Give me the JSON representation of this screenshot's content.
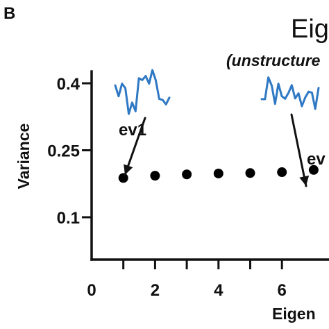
{
  "figure": {
    "panel_letter": "B",
    "title": "Eig",
    "annotation_right": "(unstructure",
    "label_ev1": "ev1",
    "label_ev_right": "ev"
  },
  "colors": {
    "axis": "#111111",
    "points": "#000000",
    "sparkline": "#2f78c4",
    "text": "#111111"
  },
  "chart_data": {
    "type": "scatter",
    "title": "Eig",
    "xlabel": "Eigen",
    "ylabel": "Variance",
    "xlim": [
      0,
      7.4
    ],
    "ylim": [
      0.06,
      0.43
    ],
    "xticks": [
      0,
      2,
      4,
      6
    ],
    "yticks": [
      0.4,
      0.25,
      0.1
    ],
    "ytick_labels": [
      "0.4",
      "0.25",
      "0.1"
    ],
    "x_start_tick": 1,
    "grid": false,
    "series": [
      {
        "x": [
          1,
          2,
          3,
          4,
          5,
          6,
          7
        ],
        "y": [
          0.188,
          0.193,
          0.196,
          0.198,
          0.199,
          0.201,
          0.206
        ]
      }
    ],
    "annotations": [
      "ev1",
      "(unstructure",
      "ev"
    ]
  },
  "sparklines": {
    "left": [
      0.66,
      0.42,
      0.7,
      0.6,
      0.03,
      0.28,
      0.09,
      0.82,
      0.78,
      0.87,
      0.7,
      1.0,
      0.77,
      0.36,
      0.34,
      0.24,
      0.39
    ],
    "right": [
      0.27,
      0.27,
      0.83,
      0.62,
      0.15,
      0.67,
      0.35,
      0.28,
      0.43,
      0.63,
      0.29,
      0.42,
      0.09,
      0.31,
      0.46,
      0.44,
      0.02,
      0.56
    ]
  }
}
